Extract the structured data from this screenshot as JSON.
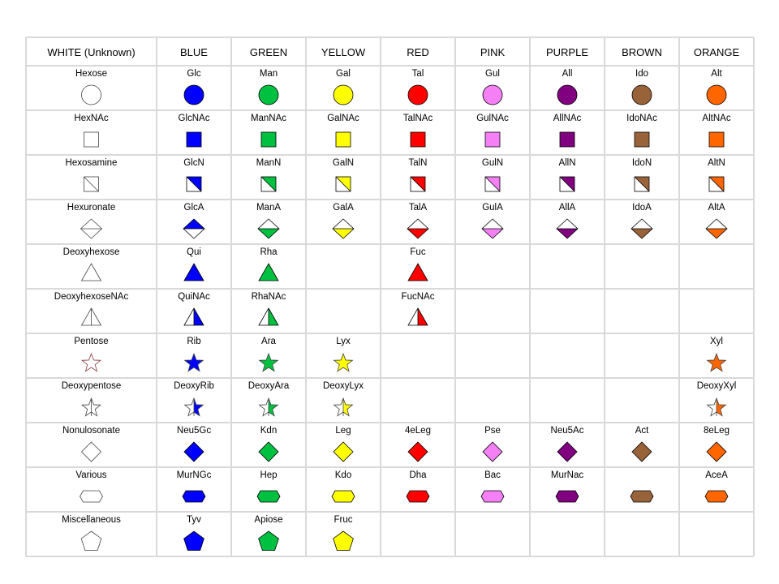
{
  "colors": {
    "white": "#ffffff",
    "blue": "#0000ff",
    "green": "#00c040",
    "yellow": "#ffff00",
    "red": "#ff0000",
    "pink": "#f580f5",
    "purple": "#800080",
    "brown": "#99633a",
    "orange": "#ff6600"
  },
  "columns": [
    {
      "label": "WHITE (Unknown)",
      "color": "white"
    },
    {
      "label": "BLUE",
      "color": "blue"
    },
    {
      "label": "GREEN",
      "color": "green"
    },
    {
      "label": "YELLOW",
      "color": "yellow"
    },
    {
      "label": "RED",
      "color": "red"
    },
    {
      "label": "PINK",
      "color": "pink"
    },
    {
      "label": "PURPLE",
      "color": "purple"
    },
    {
      "label": "BROWN",
      "color": "brown"
    },
    {
      "label": "ORANGE",
      "color": "orange"
    }
  ],
  "rows": [
    {
      "shape": "circle",
      "cells": [
        "Hexose",
        "Glc",
        "Man",
        "Gal",
        "Tal",
        "Gul",
        "All",
        "Ido",
        "Alt"
      ]
    },
    {
      "shape": "square",
      "cells": [
        "HexNAc",
        "GlcNAc",
        "ManNAc",
        "GalNAc",
        "TalNAc",
        "GulNAc",
        "AllNAc",
        "IdoNAc",
        "AltNAc"
      ]
    },
    {
      "shape": "crossed-square",
      "cells": [
        "Hexosamine",
        "GlcN",
        "ManN",
        "GalN",
        "TalN",
        "GulN",
        "AllN",
        "IdoN",
        "AltN"
      ]
    },
    {
      "shape": "divided-diamond",
      "cells": [
        "Hexuronate",
        "GlcA",
        "ManA",
        "GalA",
        "TalA",
        "GulA",
        "AllA",
        "IdoA",
        "AltA"
      ]
    },
    {
      "shape": "triangle",
      "cells": [
        "Deoxyhexose",
        "Qui",
        "Rha",
        null,
        "Fuc",
        null,
        null,
        null,
        null
      ]
    },
    {
      "shape": "divided-triangle",
      "cells": [
        "DeoxyhexoseNAc",
        "QuiNAc",
        "RhaNAc",
        null,
        "FucNAc",
        null,
        null,
        null,
        null
      ]
    },
    {
      "shape": "star",
      "cells": [
        "Pentose",
        "Rib",
        "Ara",
        "Lyx",
        null,
        null,
        null,
        null,
        "Xyl"
      ]
    },
    {
      "shape": "divided-star",
      "cells": [
        "Deoxypentose",
        "DeoxyRib",
        "DeoxyAra",
        "DeoxyLyx",
        null,
        null,
        null,
        null,
        "DeoxyXyl"
      ]
    },
    {
      "shape": "diamond",
      "cells": [
        "Nonulosonate",
        "Neu5Gc",
        "Kdn",
        "Leg",
        "4eLeg",
        "Pse",
        "Neu5Ac",
        "Act",
        "8eLeg"
      ]
    },
    {
      "shape": "flat-hexagon",
      "cells": [
        "Various",
        "MurNGc",
        "Hep",
        "Kdo",
        "Dha",
        "Bac",
        "MurNac",
        "",
        "AceA"
      ]
    },
    {
      "shape": "pentagon",
      "cells": [
        "Miscellaneous",
        "Tyv",
        "Apiose",
        "Fruc",
        null,
        null,
        null,
        null,
        null
      ]
    }
  ]
}
